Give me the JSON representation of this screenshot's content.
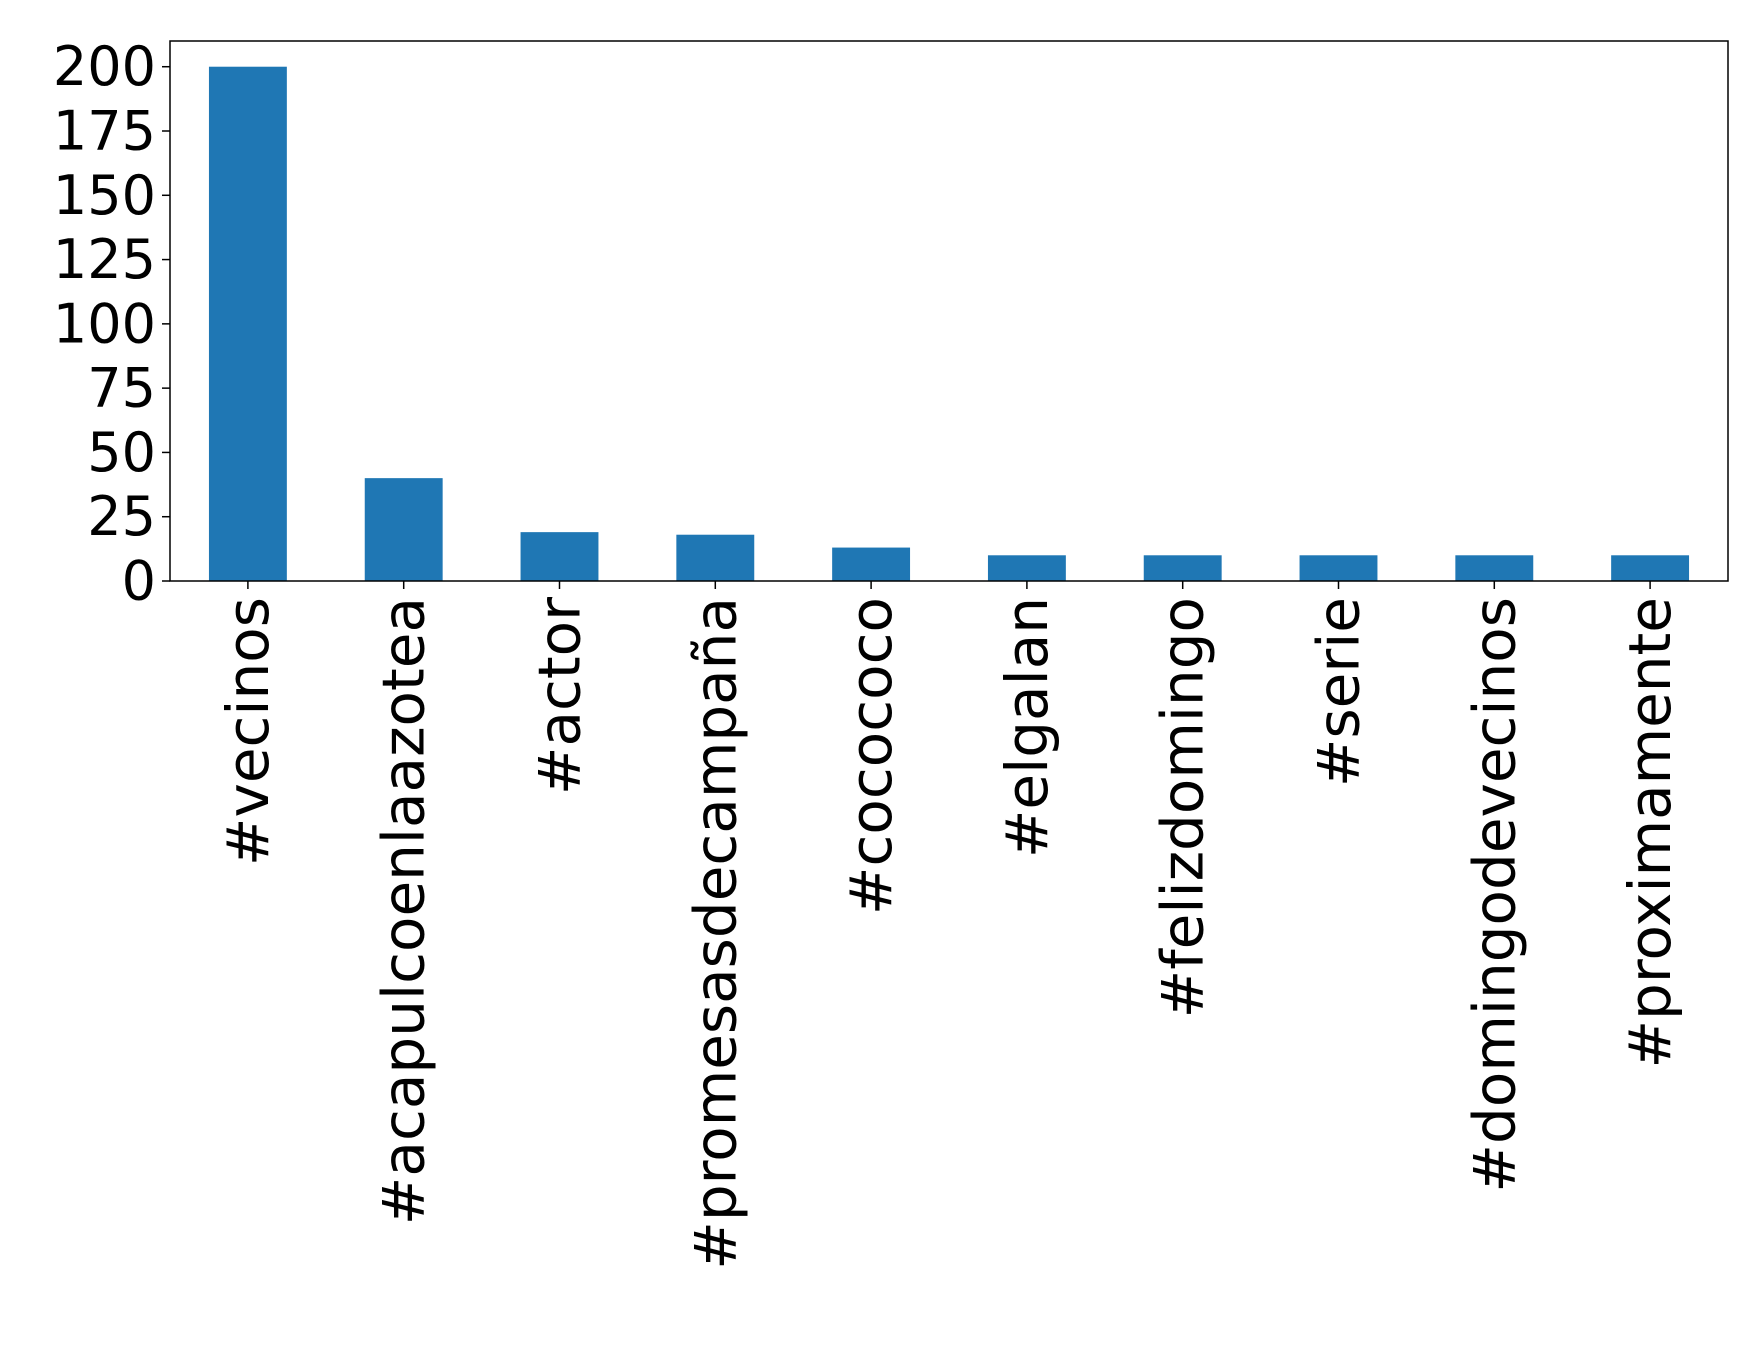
{
  "chart_data": {
    "type": "bar",
    "title": "",
    "xlabel": "",
    "ylabel": "",
    "categories": [
      "#vecinos",
      "#acapulcoenlaazotea",
      "#actor",
      "#promesasdecampaña",
      "#cocococo",
      "#elgalan",
      "#felizdomingo",
      "#serie",
      "#domingodevecinos",
      "#proximamente"
    ],
    "values": [
      200,
      40,
      19,
      18,
      13,
      10,
      10,
      10,
      10,
      10
    ],
    "ylim": [
      0,
      210
    ],
    "yticks": [
      0,
      25,
      50,
      75,
      100,
      125,
      150,
      175,
      200
    ],
    "grid": false,
    "legend": "none",
    "bar_color": "#1f77b4"
  }
}
